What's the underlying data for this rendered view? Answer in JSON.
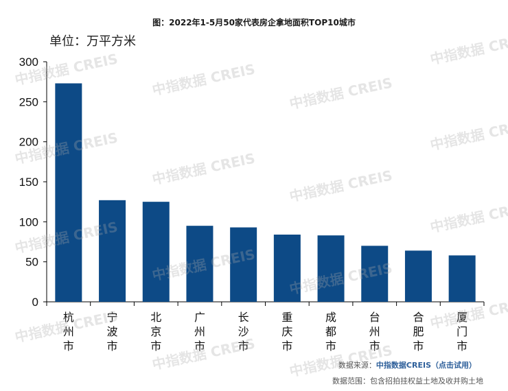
{
  "title": "图：2022年1-5月50家代表房企拿地面积TOP10城市",
  "unit_label": "单位：万平方米",
  "watermark": "中指数据 CREIS",
  "footer": {
    "source_label": "数据来源：",
    "source_brand": "中指数据CREIS（点击试用）",
    "scope": "数据范围：包含招拍挂权益土地及收并购土地"
  },
  "colors": {
    "bar": "#0d4a86",
    "axis": "#000000"
  },
  "chart_data": {
    "type": "bar",
    "title": "图：2022年1-5月50家代表房企拿地面积TOP10城市",
    "xlabel": "",
    "ylabel": "单位：万平方米",
    "categories": [
      "杭州市",
      "宁波市",
      "北京市",
      "广州市",
      "长沙市",
      "重庆市",
      "成都市",
      "台州市",
      "合肥市",
      "厦门市"
    ],
    "values": [
      273,
      127,
      125,
      95,
      93,
      84,
      83,
      70,
      64,
      58
    ],
    "ylim": [
      0,
      300
    ],
    "yticks": [
      0,
      50,
      100,
      150,
      200,
      250,
      300
    ],
    "grid": false,
    "legend": "none"
  }
}
